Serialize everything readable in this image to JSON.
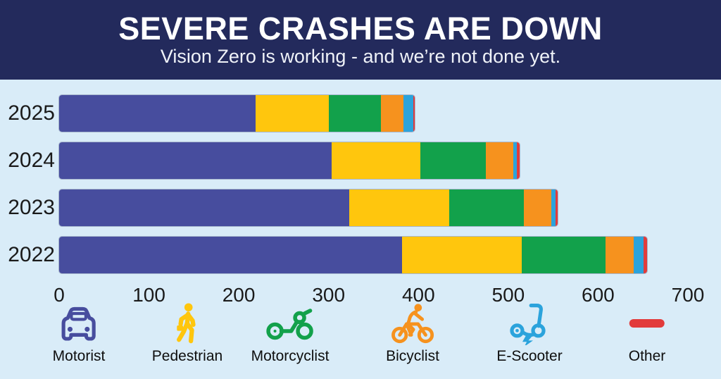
{
  "header": {
    "title": "SEVERE CRASHES ARE DOWN",
    "subtitle": "Vision Zero is working - and we’re not done yet."
  },
  "colors": {
    "background": "#D9ECF8",
    "header_bg": "#232A5C",
    "title_text": "#FFFFFF",
    "subtitle_text": "#EFF2F8",
    "axis_text": "#1A1A1A",
    "motorist": "#474D9E",
    "pedestrian": "#FFC60D",
    "motorcyclist": "#12A14B",
    "bicyclist": "#F6921E",
    "escooter": "#2BA3DC",
    "other": "#E23B3B"
  },
  "chart_data": {
    "type": "bar",
    "orientation": "horizontal",
    "stacked": true,
    "categories": [
      "2025",
      "2024",
      "2023",
      "2022"
    ],
    "series": [
      {
        "name": "Motorist",
        "color_key": "motorist",
        "values": [
          219,
          303,
          323,
          382
        ]
      },
      {
        "name": "Pedestrian",
        "color_key": "pedestrian",
        "values": [
          81,
          99,
          111,
          133
        ]
      },
      {
        "name": "Motorcyclist",
        "color_key": "motorcyclist",
        "values": [
          58,
          73,
          83,
          93
        ]
      },
      {
        "name": "Bicyclist",
        "color_key": "bicyclist",
        "values": [
          25,
          31,
          31,
          32
        ]
      },
      {
        "name": "E-Scooter",
        "color_key": "escooter",
        "values": [
          11,
          4,
          5,
          11
        ]
      },
      {
        "name": "Other",
        "color_key": "other",
        "values": [
          2,
          3,
          2,
          4
        ]
      }
    ],
    "totals": [
      396,
      513,
      555,
      655
    ],
    "xlim": [
      0,
      700
    ],
    "xticks": [
      0,
      100,
      200,
      300,
      400,
      500,
      600,
      700
    ],
    "grid": false,
    "legend_position": "bottom"
  },
  "legend": {
    "items": [
      {
        "label": "Motorist",
        "icon": "car-icon",
        "color_key": "motorist"
      },
      {
        "label": "Pedestrian",
        "icon": "pedestrian-icon",
        "color_key": "pedestrian"
      },
      {
        "label": "Motorcyclist",
        "icon": "motorcycle-icon",
        "color_key": "motorcyclist"
      },
      {
        "label": "Bicyclist",
        "icon": "bicycle-icon",
        "color_key": "bicyclist"
      },
      {
        "label": "E-Scooter",
        "icon": "scooter-icon",
        "color_key": "escooter"
      },
      {
        "label": "Other",
        "icon": "other-line-icon",
        "color_key": "other"
      }
    ]
  }
}
